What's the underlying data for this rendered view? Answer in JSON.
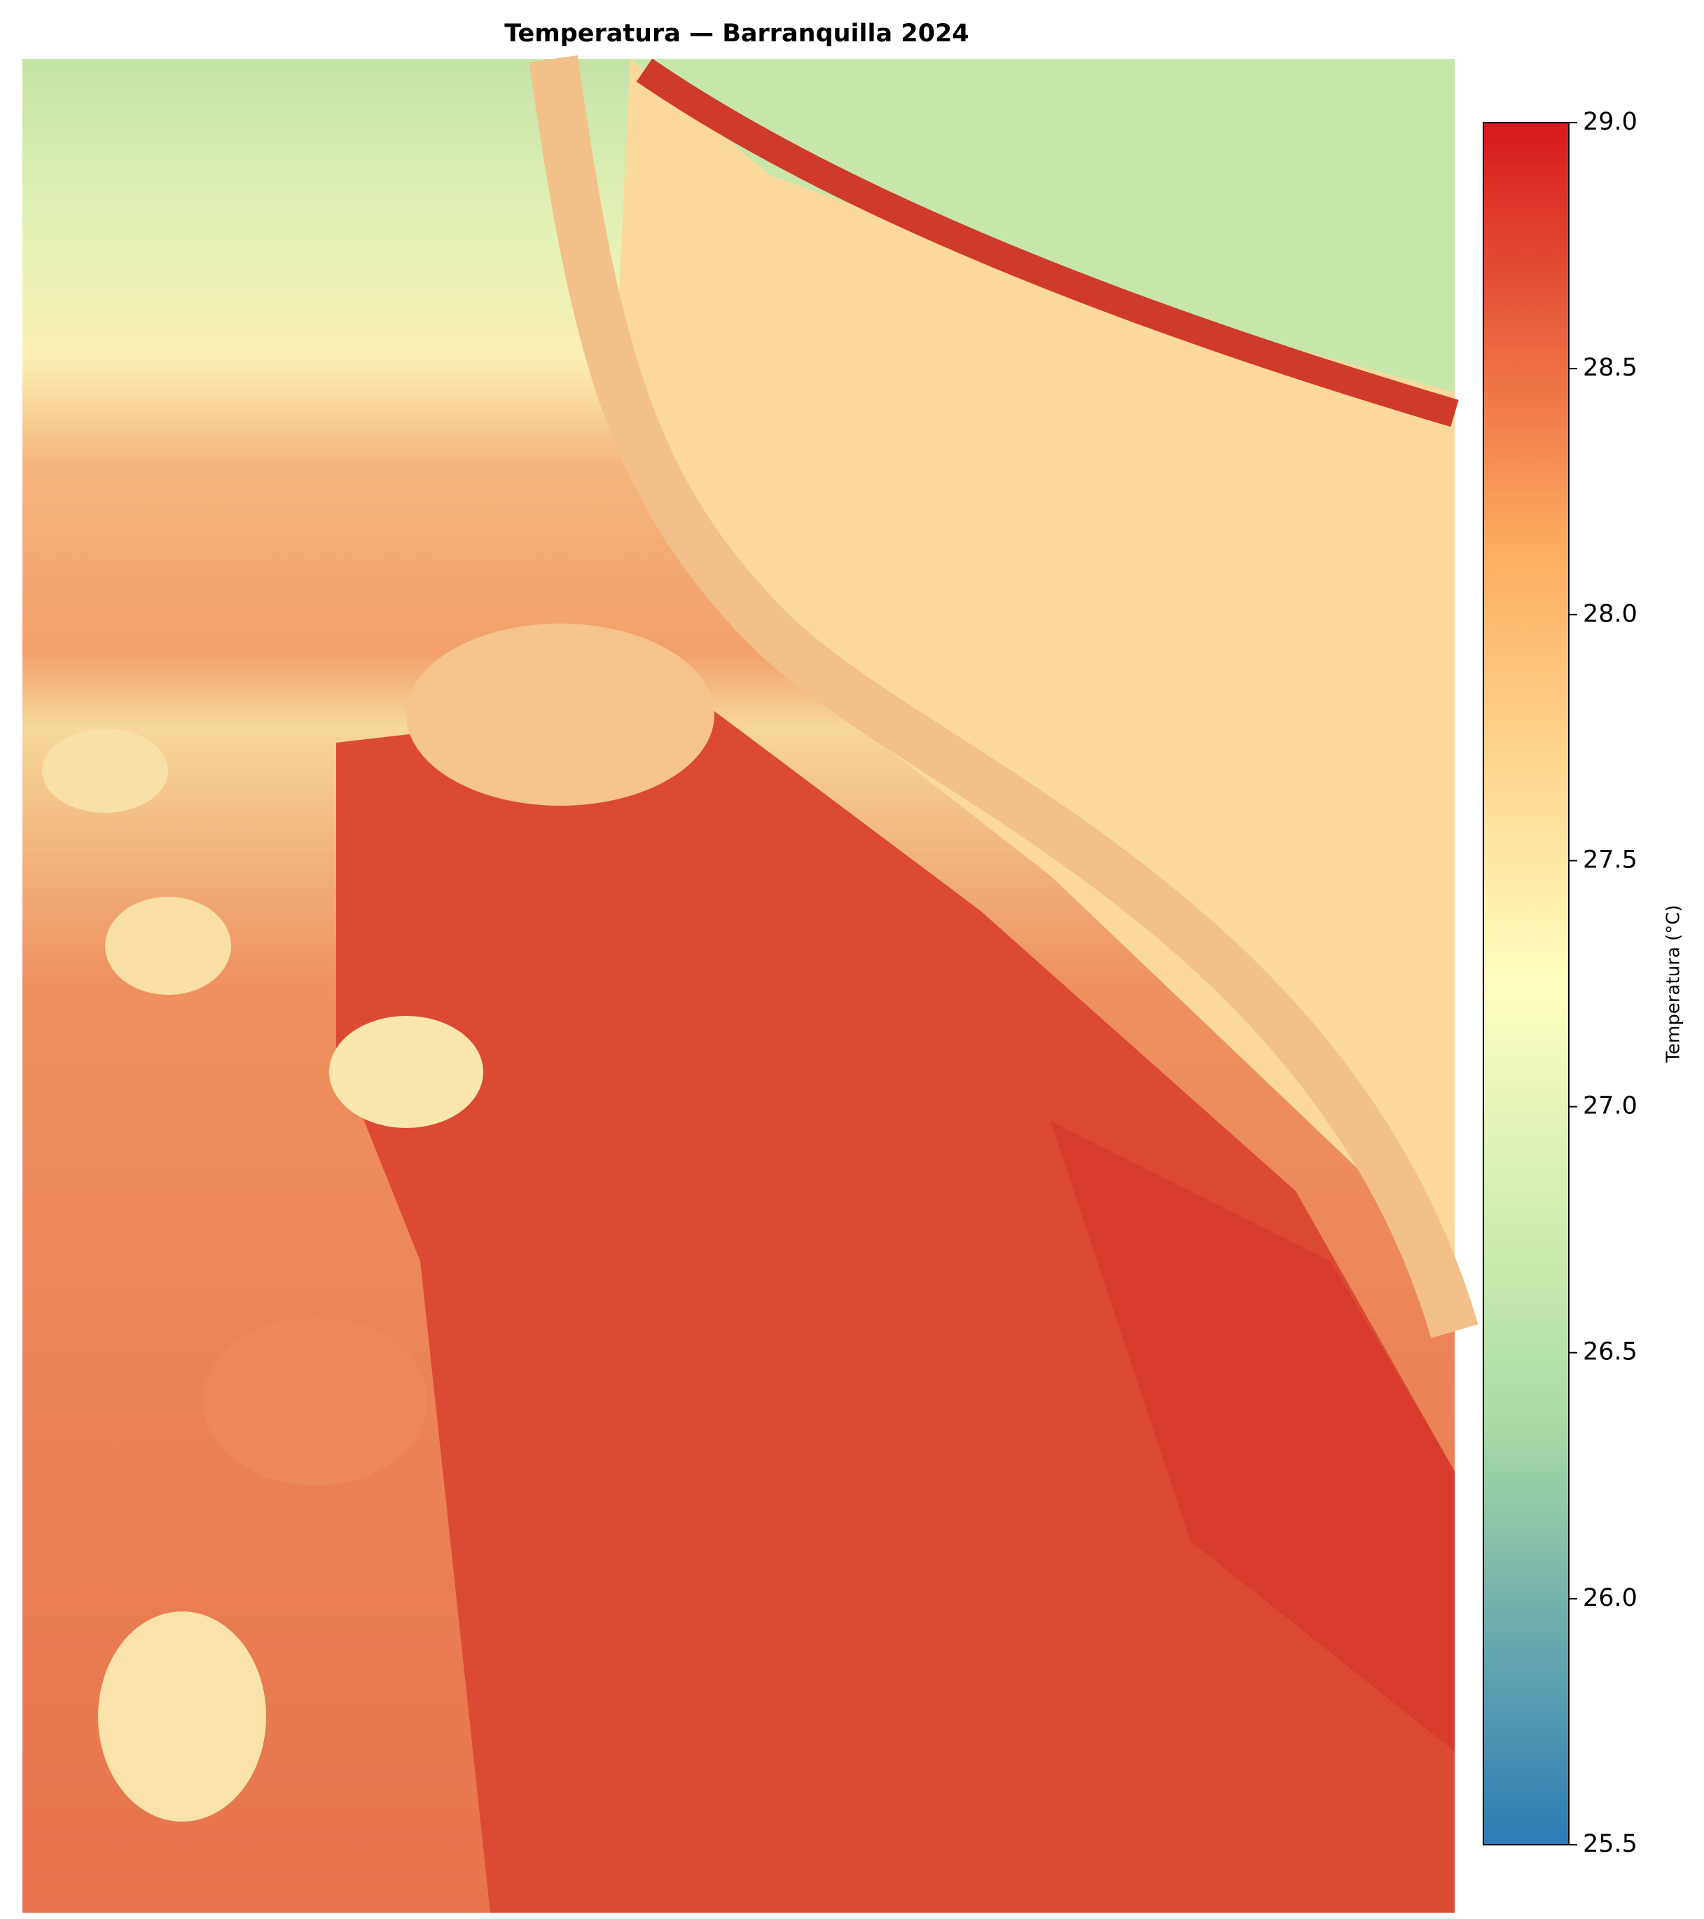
{
  "chart_data": {
    "type": "heatmap",
    "title": "Temperatura — Barranquilla 2024",
    "colorbar": {
      "label": "Temperatura (°C)",
      "lim": [
        25.5,
        29.0
      ],
      "ticks": [
        {
          "value": 25.5,
          "label": "25.5"
        },
        {
          "value": 26,
          "label": "26.0"
        },
        26.5,
        {
          "value": 27,
          "label": "27.0"
        },
        27.5,
        {
          "value": 28,
          "label": "28.0"
        },
        28.5,
        {
          "value": 29,
          "label": "29.0"
        }
      ],
      "colors": [
        "#2c7bb6",
        "#abdda4",
        "#ffffbf",
        "#fdae61",
        "#d7191c"
      ]
    }
  }
}
